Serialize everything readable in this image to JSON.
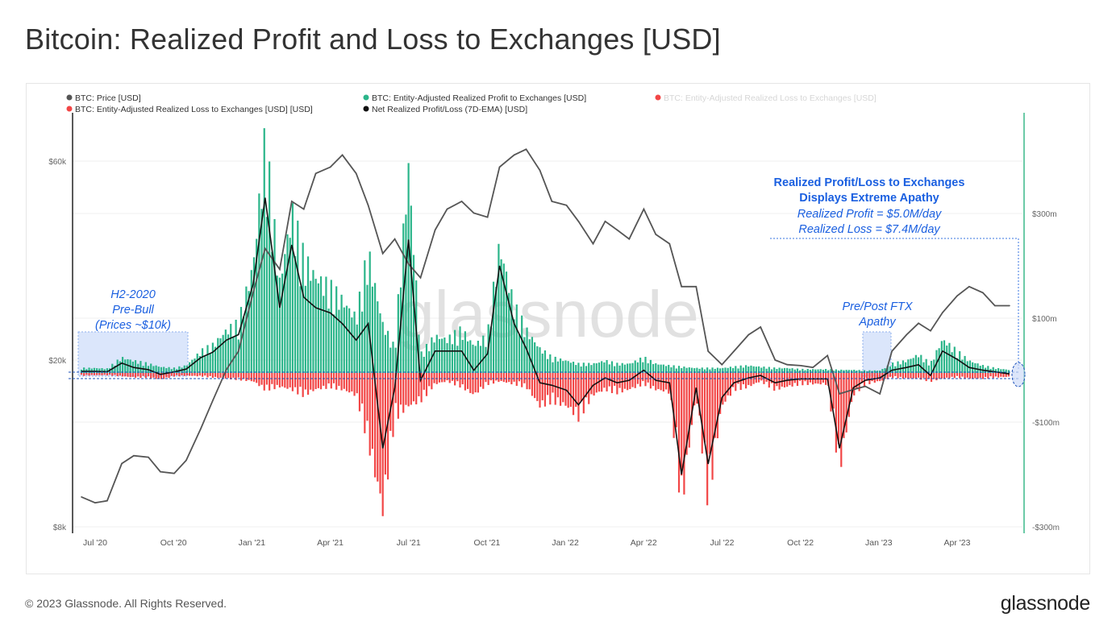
{
  "title": "Bitcoin: Realized Profit and Loss to Exchanges [USD]",
  "footer": "© 2023 Glassnode. All Rights Reserved.",
  "logo": "glassnode",
  "watermark": "glassnode",
  "colors": {
    "price": "#555555",
    "profit": "#2bb58a",
    "loss": "#f24646",
    "net": "#111111",
    "annotation": "#1a5fe0",
    "right_axis": "#3cb88a"
  },
  "chart_data": {
    "type": "bar",
    "title": "Bitcoin: Realized Profit and Loss to Exchanges [USD]",
    "legend": [
      {
        "label": "BTC: Price [USD]",
        "color": "#555555"
      },
      {
        "label": "BTC: Entity-Adjusted Realized Profit to Exchanges [USD]",
        "color": "#2bb58a"
      },
      {
        "label": "BTC: Entity-Adjusted Realized Loss to Exchanges [USD]",
        "color": "#f24646",
        "faded": true
      },
      {
        "label": "BTC: Entity-Adjusted Realized Loss to Exchanges [USD] [USD]",
        "color": "#f24646"
      },
      {
        "label": "Net Realized Profit/Loss (7D-EMA) [USD]",
        "color": "#111111"
      }
    ],
    "legend_placement": "top",
    "x_ticks": [
      "Jul '20",
      "Oct '20",
      "Jan '21",
      "Apr '21",
      "Jul '21",
      "Oct '21",
      "Jan '22",
      "Apr '22",
      "Jul '22",
      "Oct '22",
      "Jan '23",
      "Apr '23"
    ],
    "left_axis": {
      "scale": "log",
      "ticks": [
        "$8k",
        "$20k",
        "$60k"
      ],
      "range": [
        8000,
        70000
      ]
    },
    "right_axis": {
      "ticks": [
        "$300m",
        "$100m",
        "-$100m",
        "-$300m"
      ],
      "unit": "USD millions"
    },
    "grid": true,
    "dates": [
      "2020-06-15",
      "2020-07-01",
      "2020-07-15",
      "2020-08-01",
      "2020-08-15",
      "2020-09-01",
      "2020-09-15",
      "2020-10-01",
      "2020-10-15",
      "2020-11-01",
      "2020-11-15",
      "2020-12-01",
      "2020-12-15",
      "2021-01-01",
      "2021-01-15",
      "2021-02-01",
      "2021-02-15",
      "2021-03-01",
      "2021-03-15",
      "2021-04-01",
      "2021-04-15",
      "2021-05-01",
      "2021-05-15",
      "2021-06-01",
      "2021-06-15",
      "2021-07-01",
      "2021-07-15",
      "2021-08-01",
      "2021-08-15",
      "2021-09-01",
      "2021-09-15",
      "2021-10-01",
      "2021-10-15",
      "2021-11-01",
      "2021-11-15",
      "2021-12-01",
      "2021-12-15",
      "2022-01-01",
      "2022-01-15",
      "2022-02-01",
      "2022-02-15",
      "2022-03-01",
      "2022-03-15",
      "2022-04-01",
      "2022-04-15",
      "2022-05-01",
      "2022-05-15",
      "2022-06-01",
      "2022-06-15",
      "2022-07-01",
      "2022-07-15",
      "2022-08-01",
      "2022-08-15",
      "2022-09-01",
      "2022-09-15",
      "2022-10-01",
      "2022-10-15",
      "2022-11-01",
      "2022-11-15",
      "2022-12-01",
      "2022-12-15",
      "2023-01-01",
      "2023-01-15",
      "2023-02-01",
      "2023-02-15",
      "2023-03-01",
      "2023-03-15",
      "2023-04-01",
      "2023-04-15",
      "2023-05-01",
      "2023-05-15",
      "2023-06-01"
    ],
    "series": [
      {
        "name": "BTC: Price [USD]",
        "values": [
          9400,
          9100,
          9200,
          11300,
          11800,
          11700,
          10800,
          10700,
          11500,
          13700,
          16000,
          19000,
          21000,
          29000,
          37000,
          33000,
          48000,
          46000,
          56000,
          58000,
          62000,
          56000,
          47000,
          36000,
          39000,
          34000,
          31500,
          41000,
          46000,
          48000,
          45000,
          44000,
          58000,
          62000,
          64000,
          57000,
          48000,
          47000,
          43000,
          38000,
          43000,
          41000,
          39000,
          46000,
          40000,
          38000,
          30000,
          30000,
          21000,
          19500,
          21000,
          23000,
          24000,
          20000,
          19500,
          19400,
          19200,
          20500,
          16600,
          17000,
          17300,
          16600,
          21000,
          23000,
          24500,
          23500,
          26000,
          28500,
          30000,
          29000,
          27000,
          27000
        ]
      },
      {
        "name": "BTC: Entity-Adjusted Realized Profit to Exchanges [USD]",
        "unit": "USD millions",
        "values": [
          8,
          8,
          7,
          25,
          20,
          15,
          10,
          8,
          12,
          35,
          45,
          70,
          80,
          180,
          390,
          150,
          270,
          190,
          160,
          140,
          120,
          90,
          200,
          80,
          40,
          350,
          30,
          60,
          55,
          70,
          45,
          60,
          215,
          110,
          70,
          40,
          25,
          20,
          15,
          15,
          20,
          15,
          15,
          25,
          15,
          12,
          10,
          8,
          8,
          8,
          10,
          12,
          10,
          8,
          8,
          6,
          6,
          6,
          5,
          5,
          4,
          4,
          15,
          20,
          30,
          15,
          55,
          35,
          20,
          12,
          8,
          5
        ]
      },
      {
        "name": "BTC: Entity-Adjusted Realized Loss to Exchanges [USD] [USD]",
        "unit": "USD millions",
        "values": [
          -5,
          -4,
          -4,
          -6,
          -8,
          -8,
          -12,
          -6,
          -5,
          -6,
          -8,
          -10,
          -12,
          -15,
          -30,
          -25,
          -30,
          -40,
          -30,
          -25,
          -30,
          -40,
          -120,
          -240,
          -80,
          -60,
          -50,
          -20,
          -15,
          -25,
          -40,
          -20,
          -15,
          -20,
          -25,
          -60,
          -50,
          -60,
          -80,
          -40,
          -30,
          -35,
          -30,
          -20,
          -30,
          -35,
          -230,
          -40,
          -220,
          -60,
          -30,
          -25,
          -15,
          -30,
          -25,
          -20,
          -20,
          -20,
          -170,
          -40,
          -20,
          -15,
          -8,
          -10,
          -10,
          -15,
          -10,
          -8,
          -10,
          -10,
          -8,
          -7
        ]
      },
      {
        "name": "Net Realized Profit/Loss (7D-EMA) [USD]",
        "unit": "USD millions",
        "values": [
          3,
          3,
          2,
          18,
          10,
          6,
          -3,
          2,
          7,
          28,
          38,
          60,
          70,
          165,
          330,
          120,
          240,
          140,
          120,
          110,
          90,
          60,
          90,
          -150,
          -30,
          250,
          -15,
          40,
          40,
          40,
          5,
          35,
          200,
          90,
          45,
          -20,
          -25,
          -35,
          -65,
          -25,
          -10,
          -20,
          -15,
          5,
          -15,
          -20,
          -200,
          -30,
          -180,
          -50,
          -20,
          -10,
          -5,
          -20,
          -15,
          -12,
          -12,
          -12,
          -150,
          -30,
          -15,
          -10,
          5,
          10,
          15,
          -5,
          40,
          25,
          10,
          5,
          2,
          -2
        ]
      }
    ],
    "annotations": [
      {
        "lines": [
          "Realized Profit/Loss to Exchanges",
          "Displays Extreme Apathy"
        ],
        "bold": true
      },
      {
        "lines": [
          "Realized Profit = $5.0M/day",
          "Realized Loss = $7.4M/day"
        ]
      },
      {
        "lines": [
          "H2-2020",
          "Pre-Bull",
          "(Prices ~$10k)"
        ]
      },
      {
        "lines": [
          "Pre/Post FTX",
          "Apathy"
        ]
      }
    ]
  }
}
